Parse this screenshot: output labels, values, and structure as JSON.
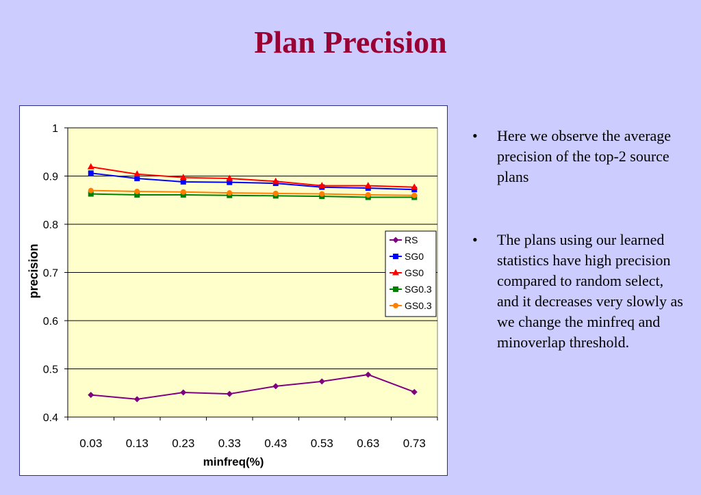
{
  "slide": {
    "title": "Plan Precision",
    "bullets": [
      "Here we observe the average precision of the top-2 source plans",
      "The plans using our learned statistics have high precision compared to random select, and it decreases very slowly as we change the minfreq and minoverlap threshold."
    ]
  },
  "chart_data": {
    "type": "line",
    "title": "",
    "xlabel": "minfreq(%)",
    "ylabel": "precision",
    "categories": [
      "0.03",
      "0.13",
      "0.23",
      "0.33",
      "0.43",
      "0.53",
      "0.63",
      "0.73"
    ],
    "ylim": [
      0.4,
      1
    ],
    "yticks": [
      0.4,
      0.5,
      0.6,
      0.7,
      0.8,
      0.9,
      1
    ],
    "ytick_labels": [
      "0.4",
      "0.5",
      "0.6",
      "0.7",
      "0.8",
      "0.9",
      "1"
    ],
    "grid": "horizontal",
    "legend": "right",
    "plot_background": "#ffffcc",
    "series": [
      {
        "name": "RS",
        "color": "#800080",
        "marker": "diamond",
        "values": [
          0.446,
          0.437,
          0.451,
          0.448,
          0.464,
          0.474,
          0.488,
          0.452
        ]
      },
      {
        "name": "SG0",
        "color": "#0000ff",
        "marker": "square",
        "values": [
          0.906,
          0.895,
          0.888,
          0.887,
          0.885,
          0.877,
          0.875,
          0.872
        ]
      },
      {
        "name": "GS0",
        "color": "#ff0000",
        "marker": "triangle",
        "values": [
          0.919,
          0.904,
          0.897,
          0.895,
          0.889,
          0.88,
          0.88,
          0.877
        ]
      },
      {
        "name": "SG0.3",
        "color": "#008000",
        "marker": "square",
        "values": [
          0.863,
          0.861,
          0.861,
          0.86,
          0.859,
          0.858,
          0.856,
          0.856
        ]
      },
      {
        "name": "GS0.3",
        "color": "#ff8000",
        "marker": "circle",
        "values": [
          0.87,
          0.868,
          0.867,
          0.865,
          0.864,
          0.863,
          0.861,
          0.86
        ]
      }
    ]
  }
}
